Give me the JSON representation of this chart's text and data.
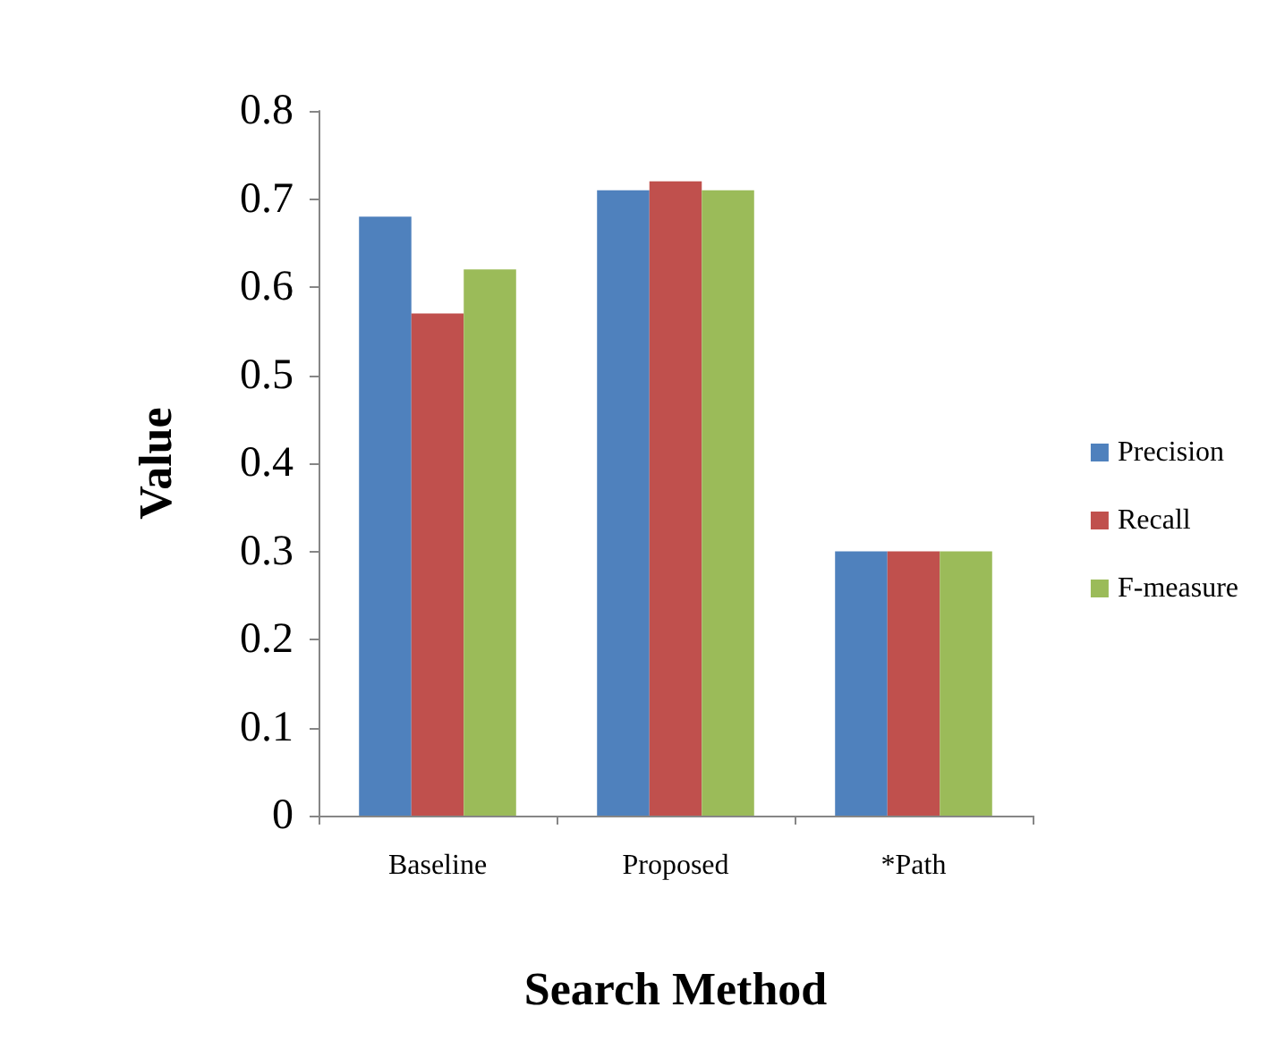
{
  "chart_data": {
    "type": "bar",
    "xlabel": "Search Method",
    "ylabel": "Value",
    "categories": [
      "Baseline",
      "Proposed",
      "*Path"
    ],
    "series": [
      {
        "name": "Precision",
        "color": "#4f81bd",
        "values": [
          0.68,
          0.71,
          0.3
        ]
      },
      {
        "name": "Recall",
        "color": "#c0504d",
        "values": [
          0.57,
          0.72,
          0.3
        ]
      },
      {
        "name": "F-measure",
        "color": "#9bbb59",
        "values": [
          0.62,
          0.71,
          0.3
        ]
      }
    ],
    "ylim": [
      0,
      0.8
    ],
    "yticks": [
      0,
      0.1,
      0.2,
      0.3,
      0.4,
      0.5,
      0.6,
      0.7,
      0.8
    ],
    "grid": false,
    "legend": "right"
  }
}
